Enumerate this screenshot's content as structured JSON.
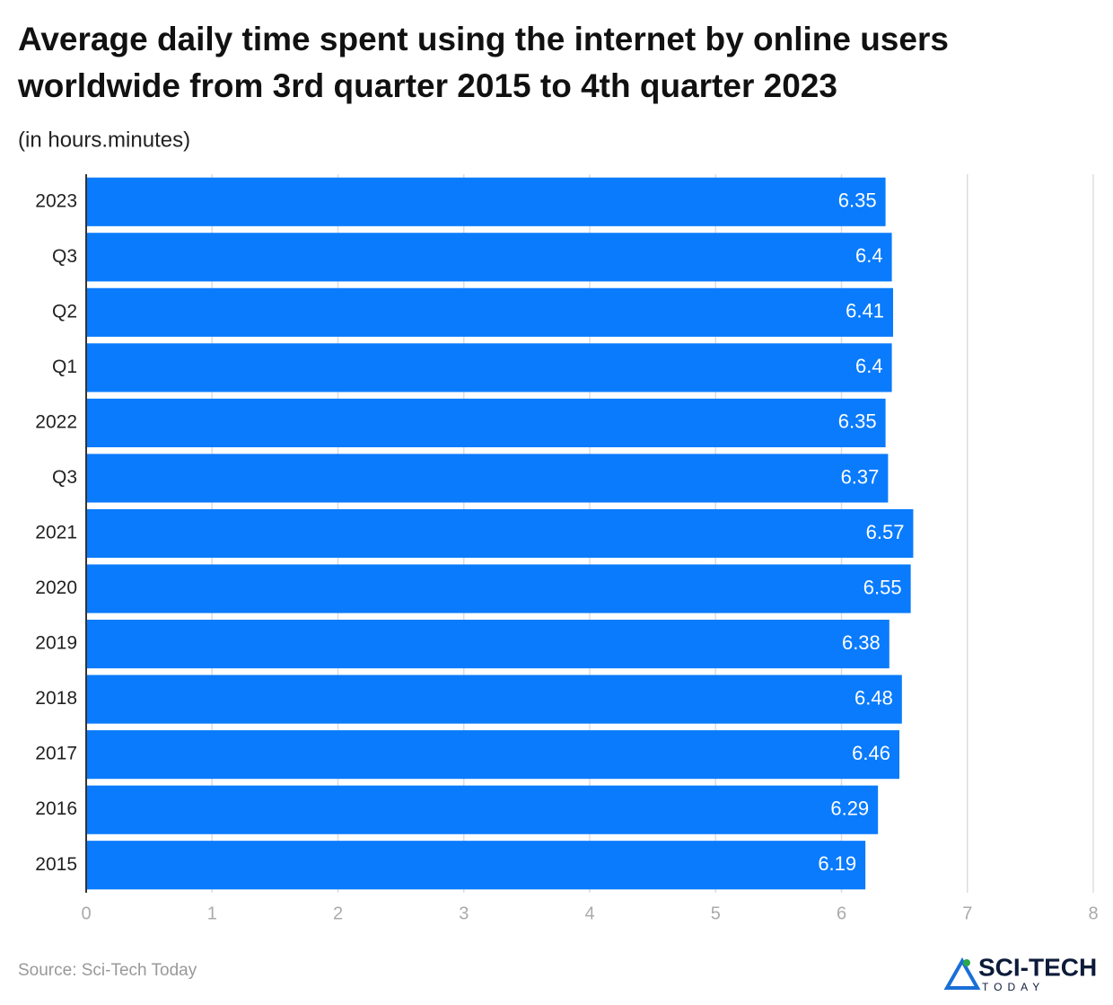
{
  "chart_data": {
    "type": "bar",
    "orientation": "horizontal",
    "title": "Average daily time spent using the internet by online users worldwide from 3rd quarter 2015 to 4th quarter 2023",
    "subtitle": "(in hours.minutes)",
    "categories": [
      "2023",
      "Q3",
      "Q2",
      "Q1",
      "2022",
      "Q3",
      "2021",
      "2020",
      "2019",
      "2018",
      "2017",
      "2016",
      "2015"
    ],
    "values": [
      6.35,
      6.4,
      6.41,
      6.4,
      6.35,
      6.37,
      6.57,
      6.55,
      6.38,
      6.48,
      6.46,
      6.29,
      6.19
    ],
    "color": "#0a7bfd",
    "xlim": [
      0,
      8
    ],
    "xticks": [
      0,
      1,
      2,
      3,
      4,
      5,
      6,
      7,
      8
    ],
    "grid": true
  },
  "source": "Source: Sci-Tech Today",
  "logo": {
    "name": "SCI-TECH",
    "tagline": "TODAY"
  }
}
